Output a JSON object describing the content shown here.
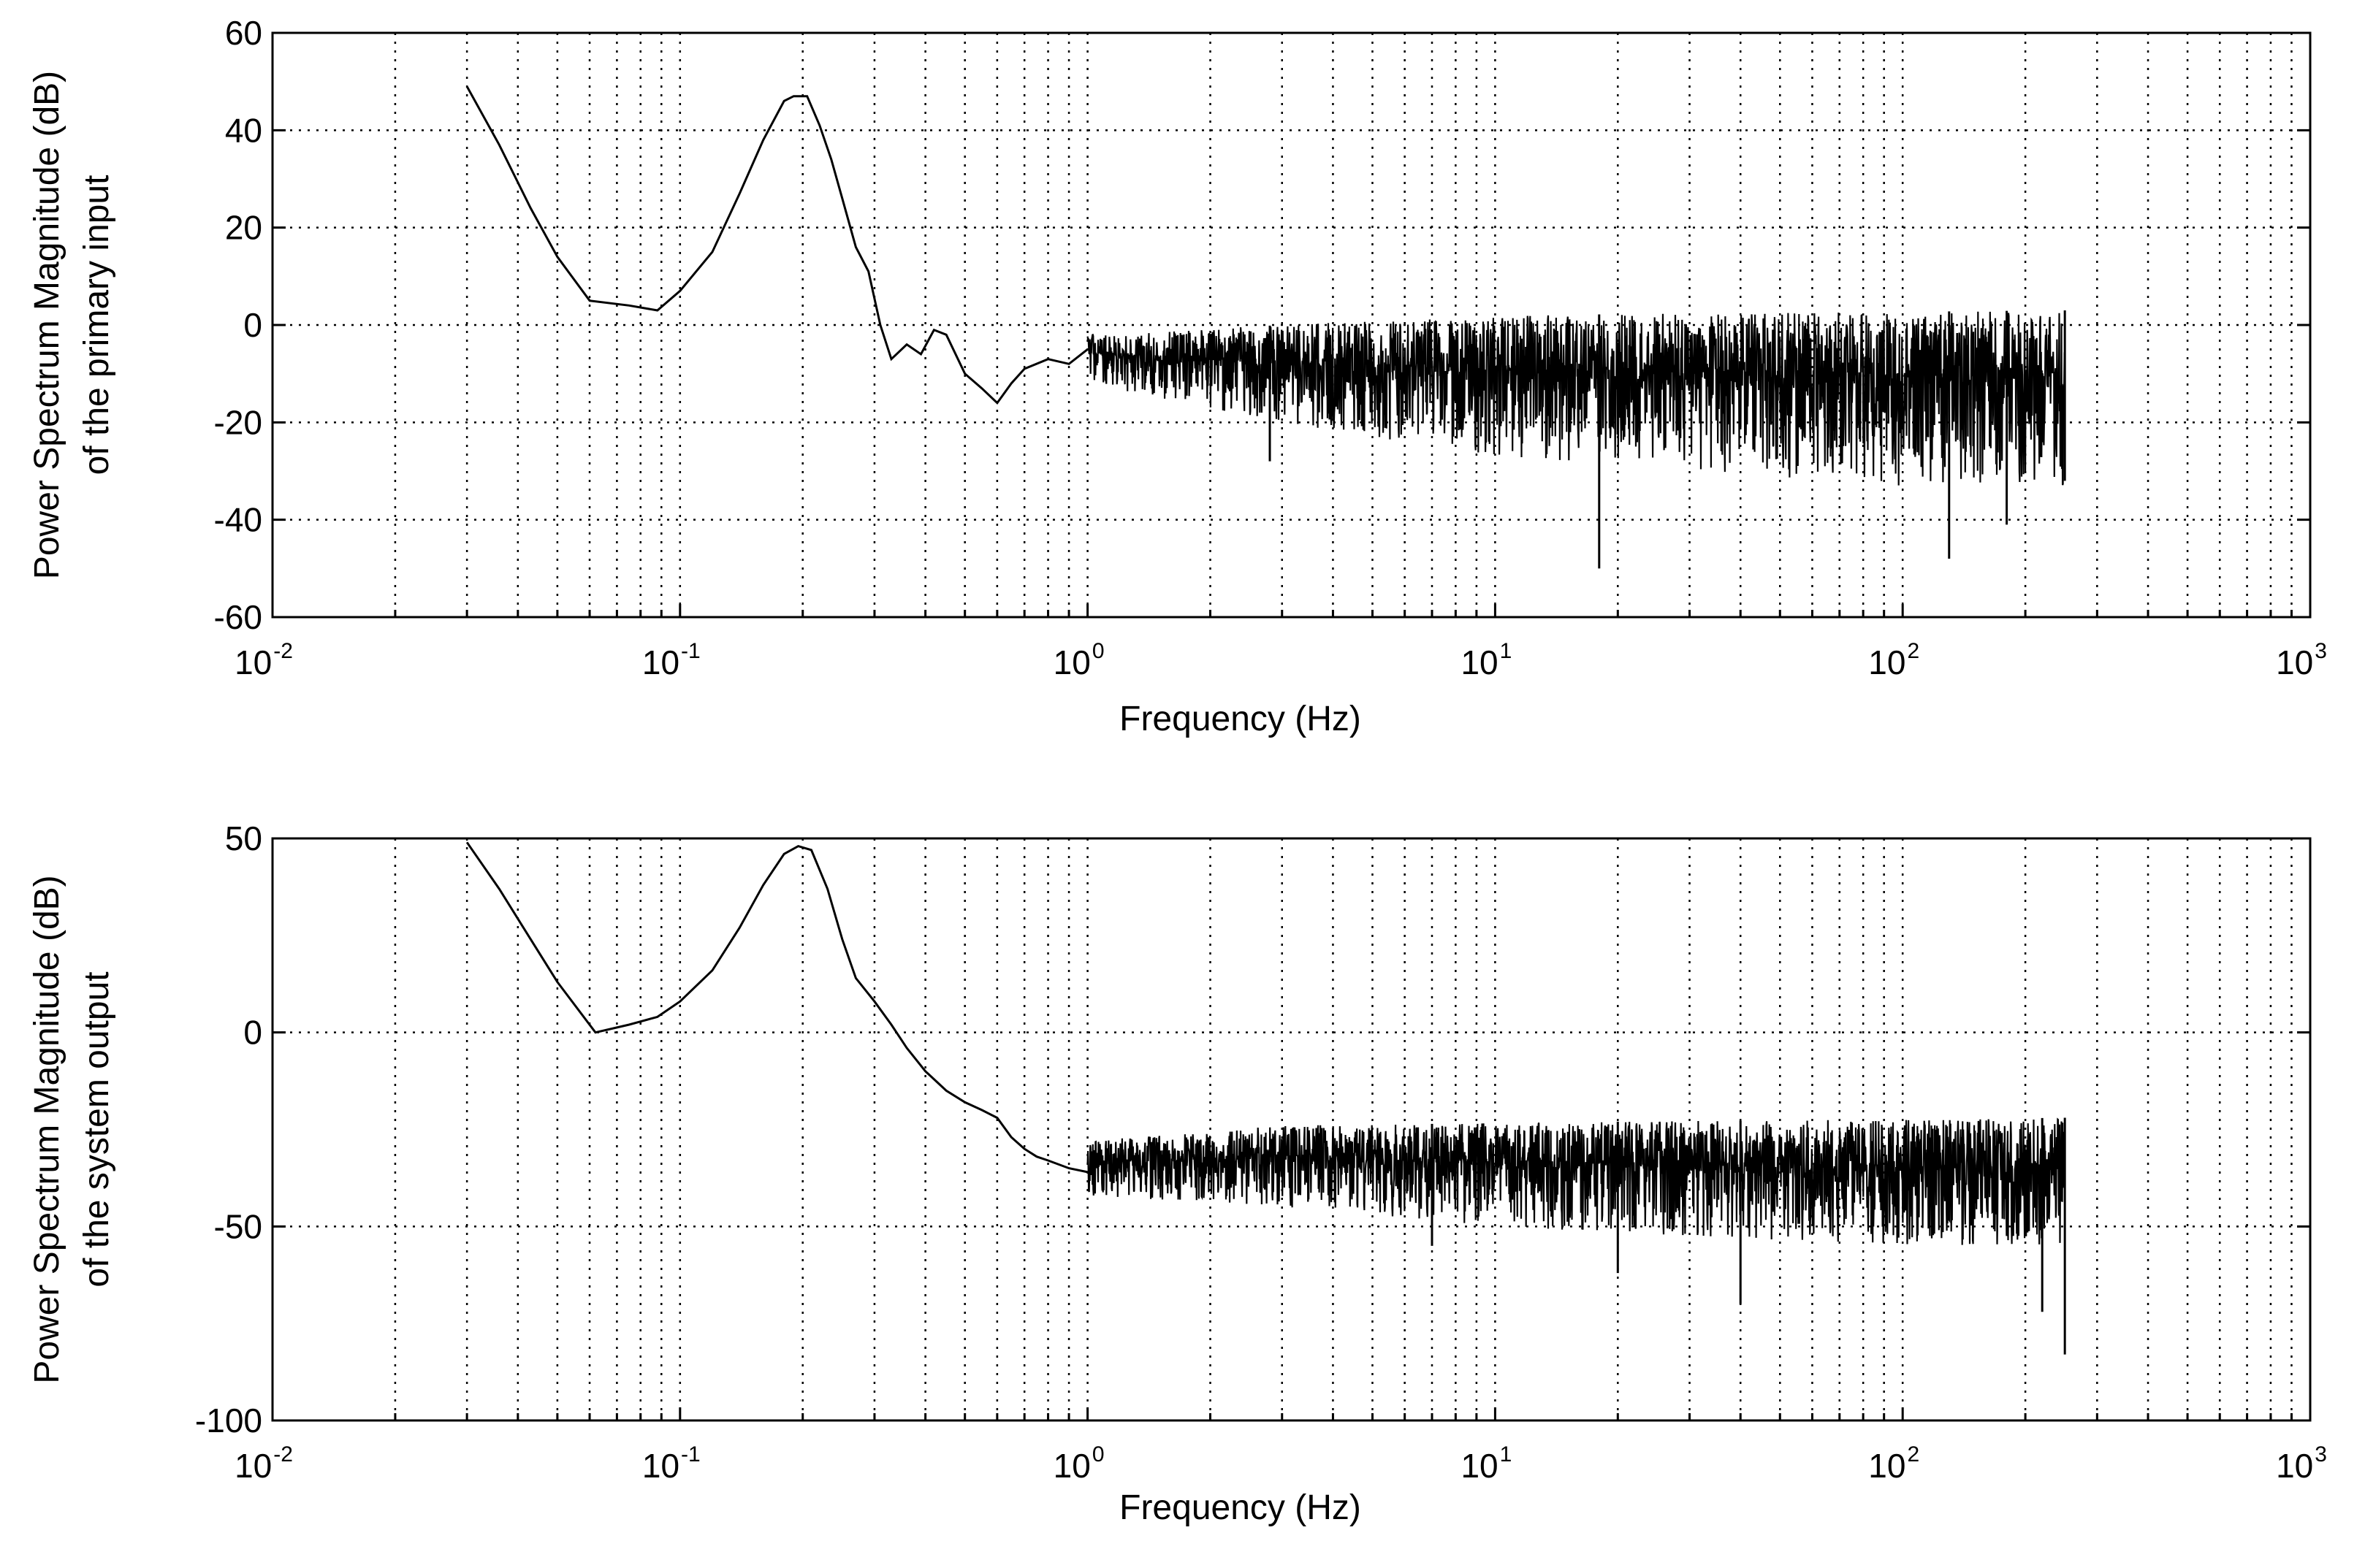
{
  "chart_data": [
    {
      "type": "line",
      "title": "",
      "xlabel": "Frequency (Hz)",
      "ylabel": [
        "Power Spectrum Magnitude (dB)",
        "of the primary input"
      ],
      "xscale": "log",
      "xlim": [
        0.01,
        1000
      ],
      "ylim": [
        -60,
        60
      ],
      "xticks": [
        {
          "base": "10",
          "exp": "-2"
        },
        {
          "base": "10",
          "exp": "-1"
        },
        {
          "base": "10",
          "exp": "0"
        },
        {
          "base": "10",
          "exp": "1"
        },
        {
          "base": "10",
          "exp": "2"
        },
        {
          "base": "10",
          "exp": "3"
        }
      ],
      "yticks": [
        "-60",
        "-40",
        "-20",
        "0",
        "20",
        "40",
        "60"
      ],
      "grid": true,
      "line_color": "#000000",
      "series": [
        {
          "x": [
            0.03,
            0.036,
            0.043,
            0.05,
            0.06,
            0.075,
            0.088,
            0.1,
            0.12,
            0.14,
            0.16,
            0.18,
            0.19,
            0.205,
            0.22,
            0.235,
            0.25,
            0.27,
            0.29,
            0.31,
            0.33,
            0.36,
            0.39,
            0.42,
            0.45,
            0.5,
            0.55,
            0.6,
            0.65,
            0.7,
            0.8,
            0.9,
            1.0
          ],
          "y": [
            49,
            37,
            24,
            14,
            5,
            4,
            3,
            7,
            15,
            27,
            38,
            46,
            47,
            47,
            41,
            34,
            26,
            16,
            11,
            0,
            -7,
            -4,
            -6,
            -1,
            -2,
            -10,
            -13,
            -16,
            -12,
            -9,
            -7,
            -8,
            -5
          ]
        }
      ],
      "noise": {
        "from_hz": 1.0,
        "to_hz": 250,
        "upper_db": [
          {
            "hz": 1,
            "db": -2
          },
          {
            "hz": 3,
            "db": 0
          },
          {
            "hz": 10,
            "db": 2
          },
          {
            "hz": 250,
            "db": 3
          }
        ],
        "lower_db": [
          {
            "hz": 1,
            "db": -12
          },
          {
            "hz": 3,
            "db": -20
          },
          {
            "hz": 10,
            "db": -27
          },
          {
            "hz": 100,
            "db": -33
          },
          {
            "hz": 250,
            "db": -33
          }
        ],
        "deep_spikes": [
          {
            "hz": 2.8,
            "db": -28
          },
          {
            "hz": 18,
            "db": -50
          },
          {
            "hz": 130,
            "db": -48
          },
          {
            "hz": 180,
            "db": -41
          },
          {
            "hz": 250,
            "db": -32
          }
        ]
      }
    },
    {
      "type": "line",
      "title": "",
      "xlabel": "Frequency (Hz)",
      "ylabel": [
        "Power Spectrum Magnitude (dB)",
        "of the system output"
      ],
      "xscale": "log",
      "xlim": [
        0.01,
        1000
      ],
      "ylim": [
        -100,
        50
      ],
      "xticks": [
        {
          "base": "10",
          "exp": "-2"
        },
        {
          "base": "10",
          "exp": "-1"
        },
        {
          "base": "10",
          "exp": "0"
        },
        {
          "base": "10",
          "exp": "1"
        },
        {
          "base": "10",
          "exp": "2"
        },
        {
          "base": "10",
          "exp": "3"
        }
      ],
      "yticks": [
        "-100",
        "-50",
        "0",
        "50"
      ],
      "grid": true,
      "line_color": "#000000",
      "series": [
        {
          "x": [
            0.03,
            0.036,
            0.043,
            0.05,
            0.062,
            0.075,
            0.088,
            0.1,
            0.12,
            0.14,
            0.16,
            0.18,
            0.195,
            0.21,
            0.23,
            0.25,
            0.27,
            0.3,
            0.33,
            0.36,
            0.4,
            0.45,
            0.5,
            0.55,
            0.6,
            0.65,
            0.7,
            0.75,
            0.8,
            0.9,
            1.0
          ],
          "y": [
            49,
            37,
            24,
            13,
            0,
            2,
            4,
            8,
            16,
            27,
            38,
            46,
            48,
            47,
            37,
            24,
            14,
            8,
            2,
            -4,
            -10,
            -15,
            -18,
            -20,
            -22,
            -27,
            -30,
            -32,
            -33,
            -35,
            -36
          ]
        }
      ],
      "noise": {
        "from_hz": 1.0,
        "to_hz": 250,
        "upper_db": [
          {
            "hz": 1,
            "db": -28
          },
          {
            "hz": 3,
            "db": -24
          },
          {
            "hz": 20,
            "db": -23
          },
          {
            "hz": 250,
            "db": -22
          }
        ],
        "lower_db": [
          {
            "hz": 1,
            "db": -42
          },
          {
            "hz": 3,
            "db": -45
          },
          {
            "hz": 10,
            "db": -50
          },
          {
            "hz": 100,
            "db": -55
          },
          {
            "hz": 250,
            "db": -55
          }
        ],
        "deep_spikes": [
          {
            "hz": 7,
            "db": -55
          },
          {
            "hz": 20,
            "db": -62
          },
          {
            "hz": 40,
            "db": -70
          },
          {
            "hz": 220,
            "db": -72
          },
          {
            "hz": 250,
            "db": -83
          }
        ]
      }
    }
  ]
}
